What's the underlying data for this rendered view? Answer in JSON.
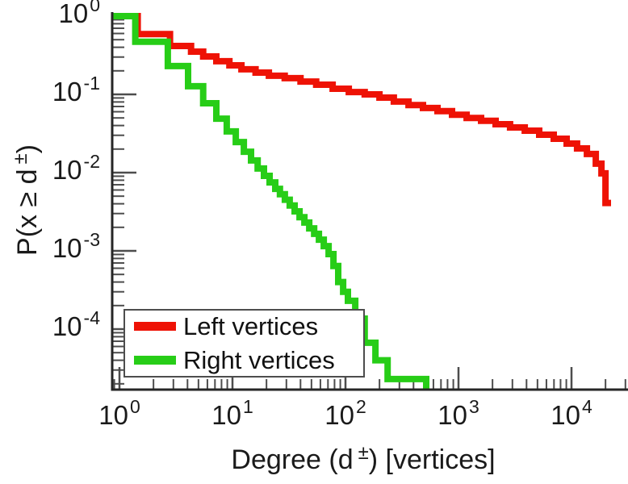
{
  "figure": {
    "background": "#ffffff",
    "axis_color": "#262626",
    "tick_color": "#4d4d4d",
    "text_color": "#1a1a1a"
  },
  "chart_data": {
    "type": "line",
    "subtype": "step-ccdf",
    "title": "",
    "xlabel": {
      "prefix": "Degree (d",
      "sup": "±",
      "suffix": ") [vertices]"
    },
    "ylabel": {
      "prefix": "P(x ≥ d",
      "sup": "±",
      "suffix": ")"
    },
    "x_scale": "log",
    "y_scale": "log",
    "xlim": [
      0.86,
      31600
    ],
    "ylim": [
      1.69e-05,
      1.13
    ],
    "grid": false,
    "x_ticks": {
      "base": "10",
      "exponents": [
        0,
        1,
        2,
        3,
        4
      ],
      "minor_per_decade": true
    },
    "y_ticks": {
      "base": "10",
      "exponents": [
        0,
        -1,
        -2,
        -3,
        -4
      ],
      "minor_per_decade": true
    },
    "legend": {
      "position": "lower-left",
      "border": true
    },
    "series": [
      {
        "name": "Left vertices",
        "color": "#ee1205",
        "line_width": 8,
        "points": [
          [
            0.86,
            1.0
          ],
          [
            1.45,
            0.59
          ],
          [
            2.8,
            0.415
          ],
          [
            4.3,
            0.352
          ],
          [
            5.5,
            0.305
          ],
          [
            7.2,
            0.265
          ],
          [
            9.4,
            0.235
          ],
          [
            12,
            0.209
          ],
          [
            16,
            0.19
          ],
          [
            21,
            0.173
          ],
          [
            29,
            0.161
          ],
          [
            40,
            0.146
          ],
          [
            55,
            0.133
          ],
          [
            77,
            0.118
          ],
          [
            107,
            0.107
          ],
          [
            148,
            0.1
          ],
          [
            200,
            0.091
          ],
          [
            268,
            0.081
          ],
          [
            361,
            0.073
          ],
          [
            485,
            0.067
          ],
          [
            652,
            0.061
          ],
          [
            877,
            0.055
          ],
          [
            1180,
            0.05
          ],
          [
            1585,
            0.046
          ],
          [
            2130,
            0.0415
          ],
          [
            2860,
            0.0378
          ],
          [
            3860,
            0.0344
          ],
          [
            5180,
            0.0305
          ],
          [
            6960,
            0.0271
          ],
          [
            9060,
            0.0235
          ],
          [
            11200,
            0.0204
          ],
          [
            13700,
            0.0173
          ],
          [
            16400,
            0.013
          ],
          [
            18400,
            0.0098
          ],
          [
            20000,
            0.0041
          ],
          [
            22400,
            0.0041
          ]
        ]
      },
      {
        "name": "Right vertices",
        "color": "#27cd17",
        "line_width": 8,
        "points": [
          [
            0.86,
            1.0
          ],
          [
            1.38,
            0.47
          ],
          [
            2.68,
            0.23
          ],
          [
            4.05,
            0.127
          ],
          [
            5.5,
            0.077
          ],
          [
            7.2,
            0.049
          ],
          [
            8.9,
            0.0336
          ],
          [
            10.7,
            0.0246
          ],
          [
            12.6,
            0.0185
          ],
          [
            14.6,
            0.0143
          ],
          [
            16.7,
            0.0113
          ],
          [
            19,
            0.0091
          ],
          [
            21.3,
            0.0075
          ],
          [
            23.9,
            0.0062
          ],
          [
            26.3,
            0.0053
          ],
          [
            29.1,
            0.0045
          ],
          [
            32.1,
            0.0038
          ],
          [
            35.5,
            0.0032
          ],
          [
            39.2,
            0.0027
          ],
          [
            43.3,
            0.0023
          ],
          [
            47.8,
            0.00194
          ],
          [
            52.8,
            0.00165
          ],
          [
            58.2,
            0.00139
          ],
          [
            64.2,
            0.00115
          ],
          [
            70.9,
            0.00091
          ],
          [
            78.3,
            0.00064
          ],
          [
            86.3,
            0.0004
          ],
          [
            95.3,
            0.0003
          ],
          [
            105,
            0.00023
          ],
          [
            122,
            0.000136
          ],
          [
            148,
            6.7e-05
          ],
          [
            184,
            4e-05
          ],
          [
            236,
            2.3e-05
          ],
          [
            518,
            1.69e-05
          ]
        ]
      }
    ]
  }
}
